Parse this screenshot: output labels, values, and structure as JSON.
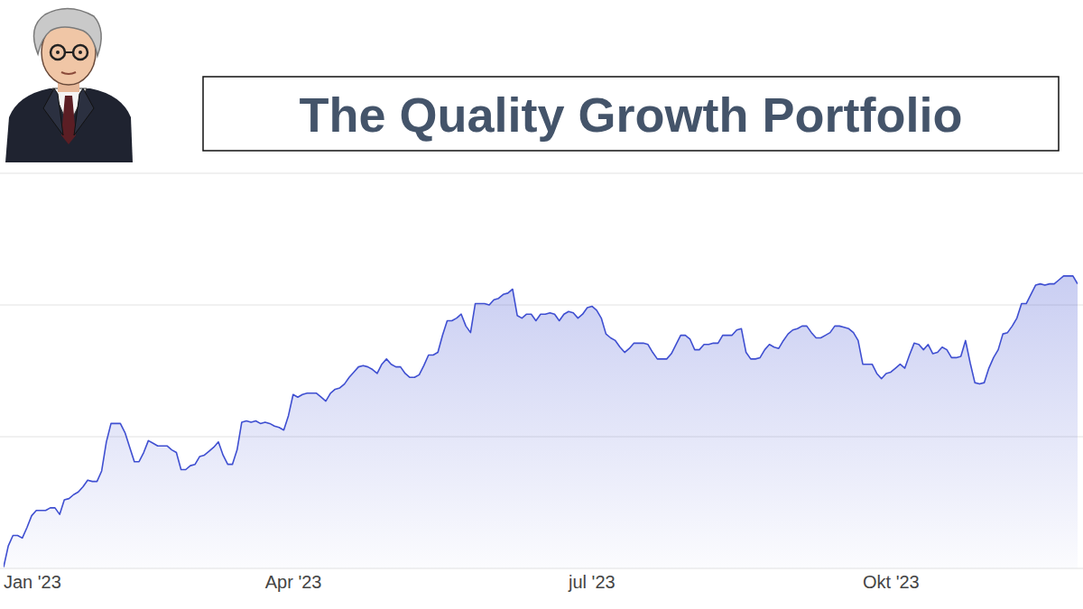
{
  "chart_data": {
    "type": "area",
    "title": "The Quality Growth Portfolio",
    "color": "#3f4fd1",
    "grid": true,
    "tick_labels": "x",
    "ylim": [
      0,
      30
    ],
    "yticks": [
      0,
      10,
      20,
      30
    ],
    "categories": [
      "Jan '23",
      null,
      null,
      null,
      null,
      null,
      null,
      null,
      null,
      null,
      null,
      null,
      null,
      null,
      null,
      null,
      null,
      null,
      null,
      null,
      null,
      null,
      null,
      null,
      null,
      null,
      null,
      null,
      null,
      null,
      null,
      null,
      null,
      null,
      null,
      null,
      null,
      null,
      null,
      null,
      null,
      null,
      null,
      null,
      null,
      null,
      null,
      null,
      null,
      null,
      null,
      null,
      null,
      null,
      null,
      null,
      "Apr '23",
      null,
      null,
      null,
      null,
      null,
      null,
      null,
      null,
      null,
      null,
      null,
      null,
      null,
      null,
      null,
      null,
      null,
      null,
      null,
      null,
      null,
      null,
      null,
      null,
      null,
      null,
      null,
      null,
      null,
      null,
      null,
      null,
      null,
      null,
      null,
      null,
      null,
      null,
      null,
      null,
      null,
      null,
      null,
      null,
      null,
      null,
      null,
      null,
      null,
      null,
      null,
      null,
      null,
      null,
      null,
      null,
      null,
      null,
      null,
      null,
      null,
      null,
      null,
      null,
      "jul '23",
      null,
      null,
      null,
      null,
      null,
      null,
      null,
      null,
      null,
      null,
      null,
      null,
      null,
      null,
      null,
      null,
      null,
      null,
      null,
      null,
      null,
      null,
      null,
      null,
      null,
      null,
      null,
      null,
      null,
      null,
      null,
      null,
      null,
      null,
      null,
      null,
      null,
      null,
      null,
      null,
      null,
      null,
      null,
      null,
      null,
      null,
      null,
      null,
      null,
      null,
      null,
      null,
      null,
      null,
      null,
      null,
      null,
      null,
      null,
      null,
      null,
      null,
      "Okt '23",
      null,
      null,
      null,
      null,
      null,
      null,
      null,
      null,
      null,
      null,
      null,
      null,
      null,
      null,
      null,
      null,
      null,
      null,
      null,
      null,
      null,
      null,
      null,
      null,
      null,
      null,
      null,
      null,
      null,
      null,
      null,
      null,
      null,
      null,
      null,
      null,
      null,
      null,
      null,
      null,
      null,
      null,
      null,
      null,
      null,
      null
    ],
    "values": [
      0.1,
      1.7,
      2.5,
      2.5,
      2.3,
      3.1,
      4.0,
      4.4,
      4.4,
      4.4,
      4.6,
      4.6,
      4.1,
      5.2,
      5.3,
      5.6,
      5.8,
      6.2,
      6.7,
      6.6,
      6.6,
      7.4,
      9.6,
      11.0,
      11.0,
      11.0,
      10.3,
      9.2,
      8.1,
      8.1,
      8.8,
      9.7,
      9.5,
      9.3,
      9.3,
      9.3,
      9.0,
      8.8,
      7.5,
      7.5,
      7.8,
      7.9,
      8.5,
      8.6,
      8.9,
      9.2,
      9.6,
      8.6,
      7.9,
      7.9,
      9.0,
      11.1,
      11.2,
      11.1,
      11.2,
      11.0,
      11.1,
      11.0,
      10.8,
      10.7,
      10.5,
      11.6,
      13.2,
      13.0,
      13.2,
      13.3,
      13.3,
      13.3,
      13.0,
      12.7,
      13.3,
      13.6,
      13.7,
      14.0,
      14.5,
      14.9,
      15.3,
      15.4,
      15.3,
      15.1,
      14.8,
      15.5,
      15.9,
      15.5,
      15.3,
      15.3,
      14.8,
      14.5,
      14.5,
      14.7,
      15.4,
      16.2,
      16.2,
      16.4,
      17.7,
      18.8,
      18.8,
      19.0,
      19.3,
      18.4,
      17.9,
      20.1,
      20.1,
      20.1,
      20.0,
      20.4,
      20.5,
      20.8,
      20.9,
      21.2,
      19.2,
      19.0,
      19.3,
      19.3,
      18.8,
      19.3,
      19.3,
      19.4,
      19.3,
      18.8,
      19.3,
      19.5,
      19.4,
      19.0,
      19.3,
      19.8,
      19.9,
      19.6,
      19.0,
      17.8,
      17.5,
      17.3,
      16.8,
      16.4,
      16.7,
      17.1,
      17.1,
      17.1,
      17.0,
      16.4,
      15.9,
      15.9,
      15.9,
      16.3,
      17.0,
      17.7,
      17.7,
      17.4,
      16.6,
      16.6,
      17.0,
      17.0,
      17.1,
      17.1,
      17.7,
      17.7,
      17.7,
      18.1,
      18.2,
      16.4,
      15.9,
      15.9,
      16.0,
      16.6,
      17.0,
      16.8,
      16.7,
      17.3,
      17.8,
      18.1,
      18.2,
      18.4,
      18.4,
      17.9,
      17.5,
      17.5,
      17.7,
      17.9,
      18.4,
      18.4,
      18.3,
      18.2,
      17.9,
      17.3,
      15.5,
      15.5,
      15.5,
      14.8,
      14.4,
      14.8,
      14.9,
      15.2,
      15.5,
      15.2,
      16.2,
      17.1,
      17.0,
      16.6,
      17.0,
      16.3,
      16.4,
      16.8,
      16.6,
      16.0,
      16.0,
      16.1,
      17.3,
      15.6,
      14.1,
      14.0,
      14.1,
      15.2,
      16.0,
      16.6,
      17.8,
      17.9,
      18.4,
      19.0,
      20.1,
      20.1,
      20.8,
      21.5,
      21.6,
      21.5,
      21.6,
      21.6,
      21.9,
      22.2,
      22.2,
      22.2,
      21.6
    ]
  }
}
